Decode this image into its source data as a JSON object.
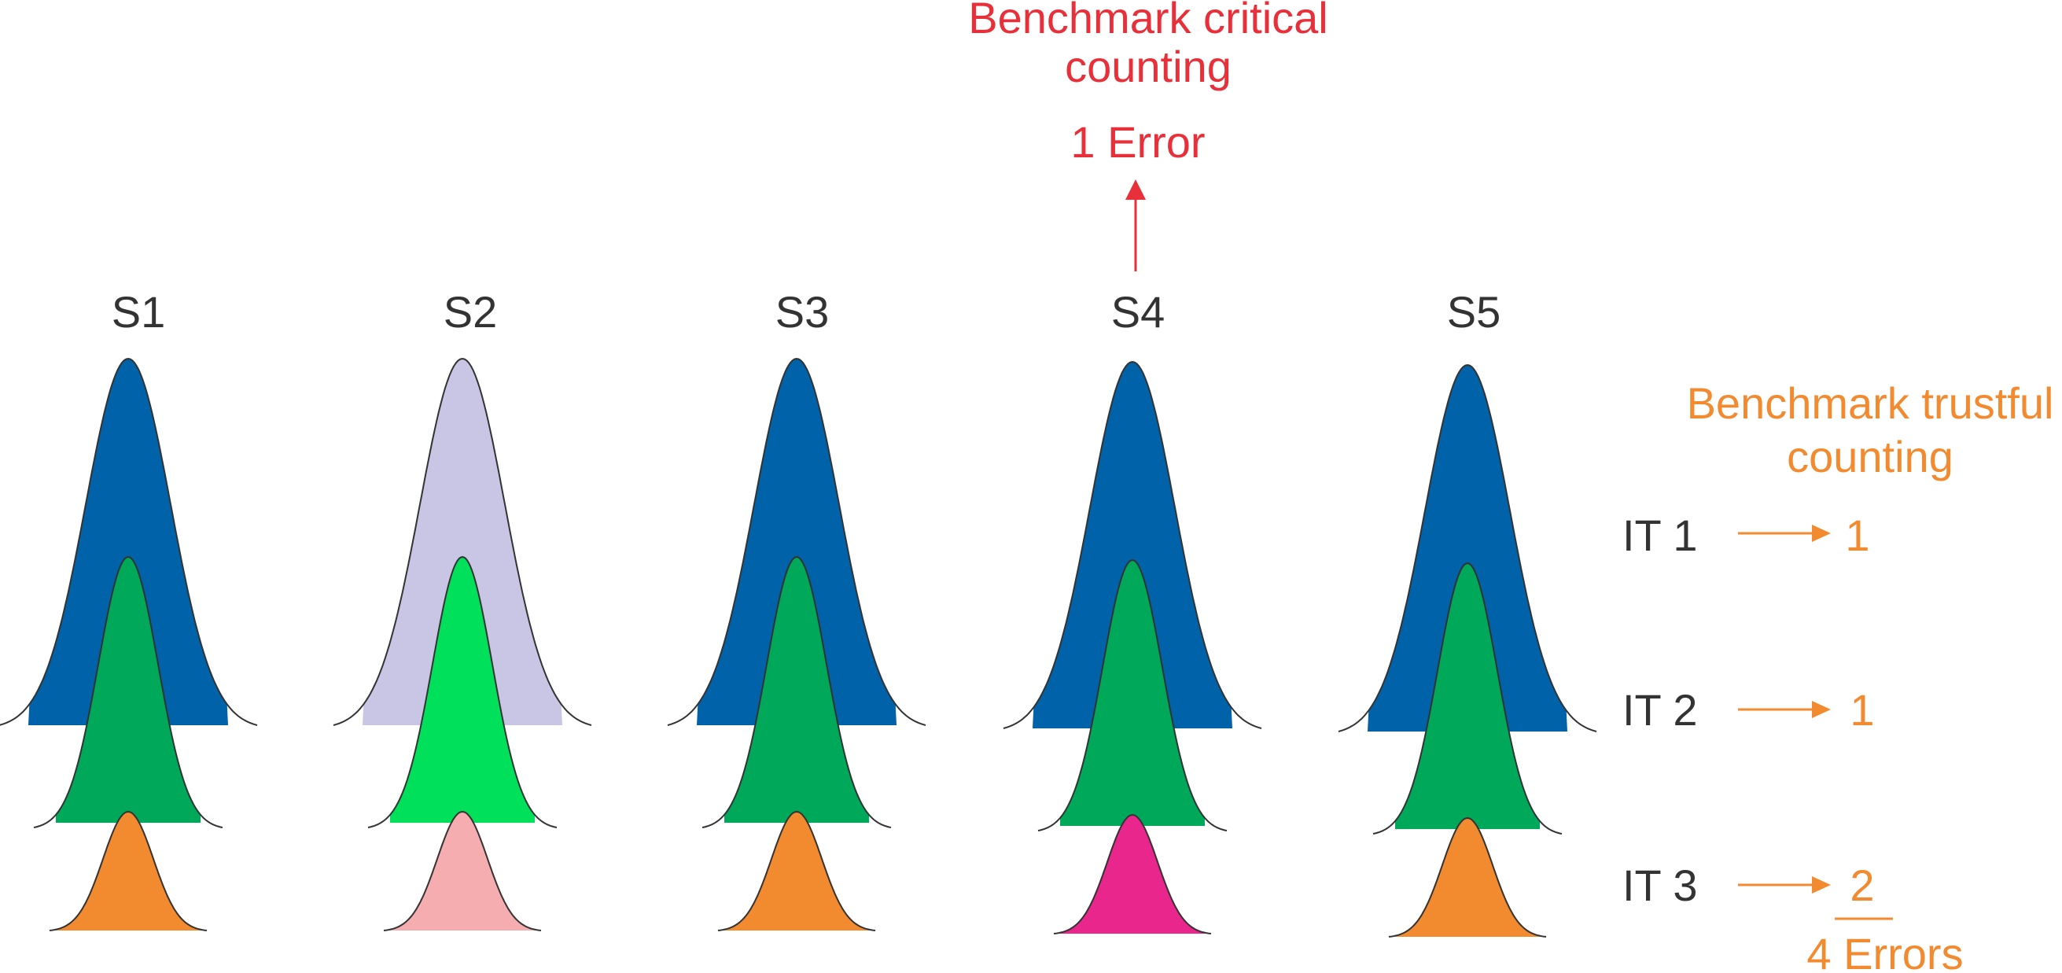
{
  "header": {
    "critical_title_line1": "Benchmark critical",
    "critical_title_line2": "counting",
    "critical_errors": "1 Error"
  },
  "trustful": {
    "title_line1": "Benchmark trustful",
    "title_line2": "counting"
  },
  "columns": [
    {
      "label": "S1",
      "colors": [
        "#0062a8",
        "#00a85a",
        "#f28a30"
      ]
    },
    {
      "label": "S2",
      "colors": [
        "#c8c6e4",
        "#00e05a",
        "#f6adb0"
      ]
    },
    {
      "label": "S3",
      "colors": [
        "#0062a8",
        "#00a85a",
        "#f28a30"
      ]
    },
    {
      "label": "S4",
      "colors": [
        "#0062a8",
        "#00a85a",
        "#e8268c"
      ]
    },
    {
      "label": "S5",
      "colors": [
        "#0062a8",
        "#00a85a",
        "#f28a30"
      ]
    }
  ],
  "rows": [
    {
      "label": "IT 1",
      "count": "1"
    },
    {
      "label": "IT 2",
      "count": "1"
    },
    {
      "label": "IT 3",
      "count": "2"
    }
  ],
  "total_errors": "4 Errors",
  "colors": {
    "critical": "#e8303a",
    "trustful": "#f28a30",
    "text": "#333333",
    "outline": "#333333"
  }
}
